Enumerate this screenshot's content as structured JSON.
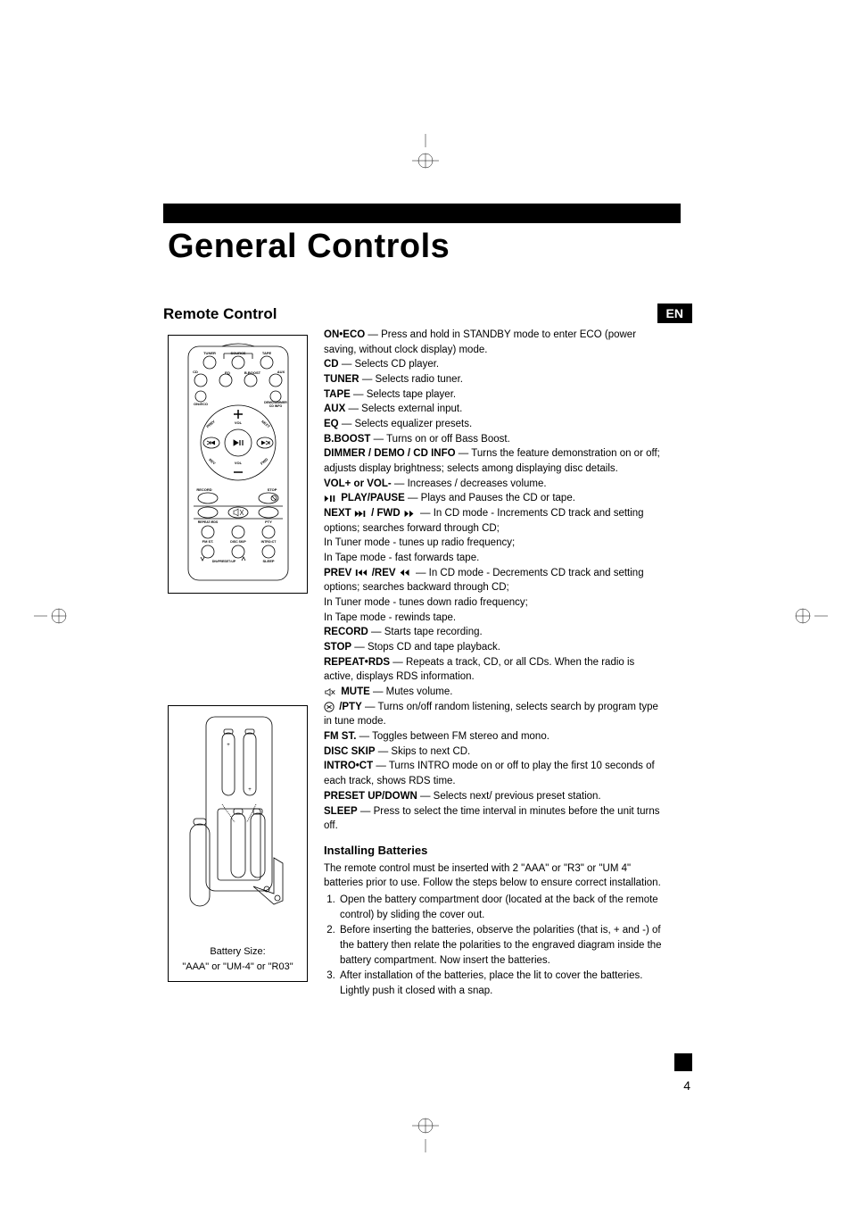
{
  "title": "General Controls",
  "section_heading": "Remote Control",
  "lang_badge": "EN",
  "page_number": "4",
  "remote_labels": {
    "tuner": "TUNER",
    "source": "SOURCE",
    "tape": "TAPE",
    "cd": "CD",
    "aux": "AUX",
    "eq": "EQ",
    "bboost": "B.BOOST",
    "oneco": "ON•ECO",
    "demo": "DEMO/DIMMER\nCD INFO",
    "vol": "VOL",
    "prev": "PREV",
    "next": "NEXT",
    "rev": "REV",
    "fwd": "FWD",
    "record": "RECORD",
    "stop": "STOP",
    "repeat": "REPEAT•RDS",
    "pty": "PTY",
    "fmst": "FM ST.",
    "discskip": "DISC SKIP",
    "introct": "INTRO•CT",
    "preset": "DN•PRESET•UP",
    "sleep": "SLEEP"
  },
  "battery_caption": "Battery Size:<br>\"AAA\" or \"UM-4\" or \"R03\"",
  "descriptions": [
    {
      "term": "ON•ECO",
      "text": " — Press and hold in STANDBY mode to enter ECO (power saving, without clock display) mode."
    },
    {
      "term": "CD",
      "text": " — Selects CD player."
    },
    {
      "term": "TUNER",
      "text": " — Selects radio tuner."
    },
    {
      "term": "TAPE",
      "text": " — Selects tape player."
    },
    {
      "term": "AUX",
      "text": "  — Selects external input."
    },
    {
      "term": "EQ",
      "text": " — Selects equalizer presets."
    },
    {
      "term": "B.BOOST",
      "text": " — Turns on or off Bass Boost."
    },
    {
      "term": "DIMMER / DEMO / CD INFO",
      "text": "  — Turns the feature demonstration on or off; adjusts display brightness; selects among displaying disc details."
    },
    {
      "term": "VOL+ or VOL-",
      "text": " — Increases / decreases volume."
    },
    {
      "icon": "play-pause",
      "term": " PLAY/PAUSE",
      "text": " — Plays and Pauses the CD or tape."
    },
    {
      "term": "NEXT ",
      "icon_after": "next-fwd",
      "term2": " / FWD ",
      "icon_after2": "fwd",
      "text": "  — In CD mode - Increments CD track and setting options; searches forward through CD;",
      "cont": [
        "In Tuner mode - tunes up radio frequency;",
        "In Tape mode - fast forwards tape."
      ]
    },
    {
      "term": "PREV ",
      "icon_after": "prev-rev",
      "term2": " /REV ",
      "icon_after2": "rev",
      "text": "  — In CD mode - Decrements CD track and setting options; searches  backward through CD;",
      "cont": [
        "In Tuner mode - tunes down radio frequency;",
        "In Tape mode - rewinds tape."
      ]
    },
    {
      "term": "RECORD",
      "text": " — Starts tape recording."
    },
    {
      "term": "STOP",
      "text": " — Stops CD and tape playback."
    },
    {
      "term": "REPEAT•RDS",
      "text": " — Repeats a track, CD, or all CDs. When the radio is active, displays RDS information."
    },
    {
      "icon": "mute",
      "term": " MUTE",
      "text": " — Mutes volume."
    },
    {
      "icon": "shuffle",
      "term": " /PTY",
      "text": " — Turns on/off random listening, selects search  by program type in tune mode."
    },
    {
      "term": "FM ST.",
      "text": " — Toggles between FM stereo and mono."
    },
    {
      "term": "DISC SKIP",
      "text": " — Skips to next CD."
    },
    {
      "term": "INTRO•CT",
      "text": " — Turns INTRO mode on or off to play the first 10 seconds of each track, shows RDS time."
    },
    {
      "term": "PRESET UP/DOWN",
      "text": " — Selects next/ previous preset station."
    },
    {
      "term": "SLEEP",
      "text": "  —  Press to select the time interval in minutes before the unit turns off."
    }
  ],
  "install_heading": "Installing Batteries",
  "install_intro": "The remote control must be inserted with 2 \"AAA\" or  \"R3\" or \"UM 4\" batteries prior to use. Follow the steps below to ensure correct installation.",
  "install_steps": [
    "Open the battery compartment door (located at the back of the remote control) by sliding the cover out.",
    "Before inserting the batteries, observe the polarities (that is, + and -) of the battery then relate the polarities to the engraved diagram inside the battery compartment.  Now insert the batteries.",
    "After installation of the batteries, place the lit to cover the batteries.  Lightly push it closed with a snap."
  ],
  "colors": {
    "text": "#000000",
    "bg": "#ffffff",
    "badge_bg": "#000000",
    "badge_text": "#ffffff"
  }
}
